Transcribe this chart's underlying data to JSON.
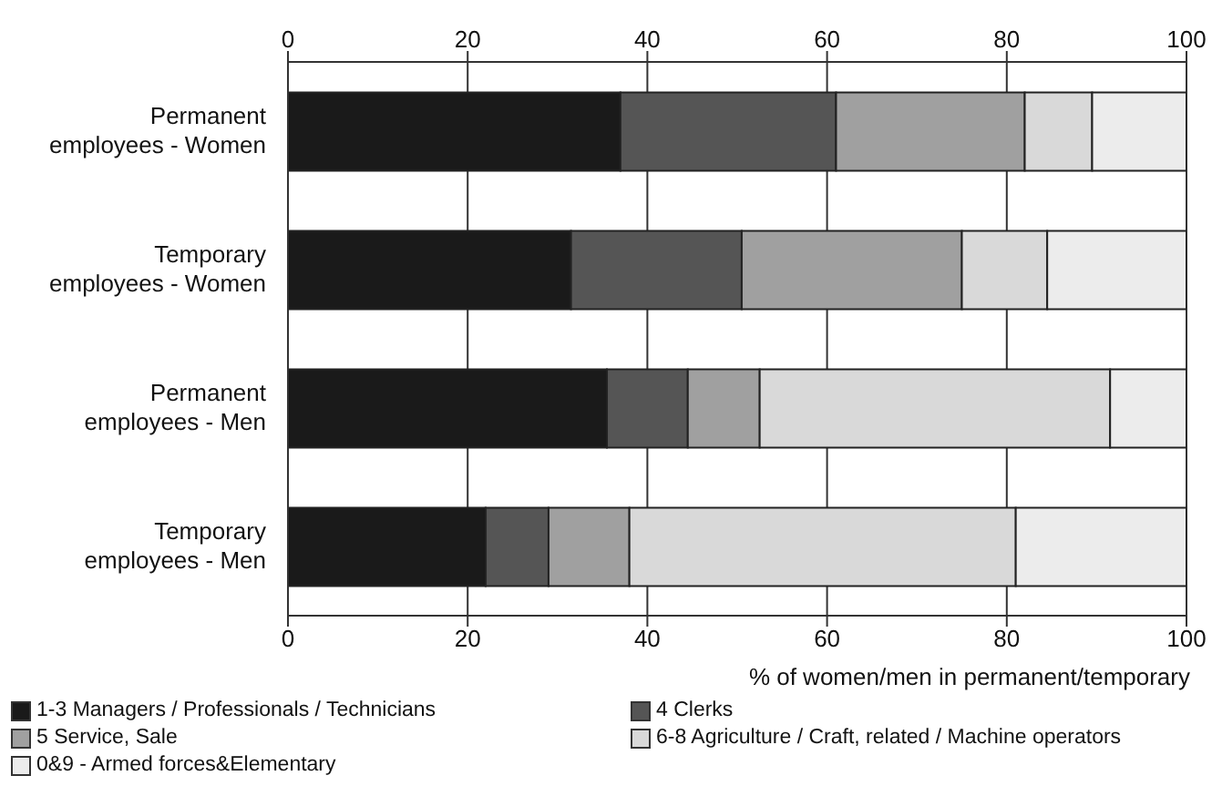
{
  "chart_data": {
    "type": "bar",
    "orientation": "horizontal",
    "stacked": true,
    "xlabel": "% of women/men in permanent/temporary",
    "categories": [
      "Permanent employees - Women",
      "Temporary employees - Women",
      "Permanent employees - Men",
      "Temporary employees - Men"
    ],
    "series": [
      {
        "name": "1-3 Managers / Professionals / Technicians",
        "color": "#1a1a1a",
        "values": [
          37,
          31.5,
          35.5,
          22
        ]
      },
      {
        "name": "4 Clerks",
        "color": "#555555",
        "values": [
          24,
          19,
          9,
          7
        ]
      },
      {
        "name": "5 Service, Sale",
        "color": "#a0a0a0",
        "values": [
          21,
          24.5,
          8,
          9
        ]
      },
      {
        "name": "6-8 Agriculture / Craft, related / Machine operators",
        "color": "#d9d9d9",
        "values": [
          7.5,
          9.5,
          39,
          43
        ]
      },
      {
        "name": "0&9 - Armed forces&Elementary",
        "color": "#ececec",
        "values": [
          10.5,
          15.5,
          8.5,
          19
        ]
      }
    ],
    "xlim": [
      0,
      100
    ],
    "xticks": [
      0,
      20,
      40,
      60,
      80,
      100
    ],
    "x2lim": [
      0,
      100
    ],
    "x2ticks": [
      0,
      20,
      40,
      60,
      80,
      100
    ],
    "grid": "x",
    "legend": "bottom"
  }
}
